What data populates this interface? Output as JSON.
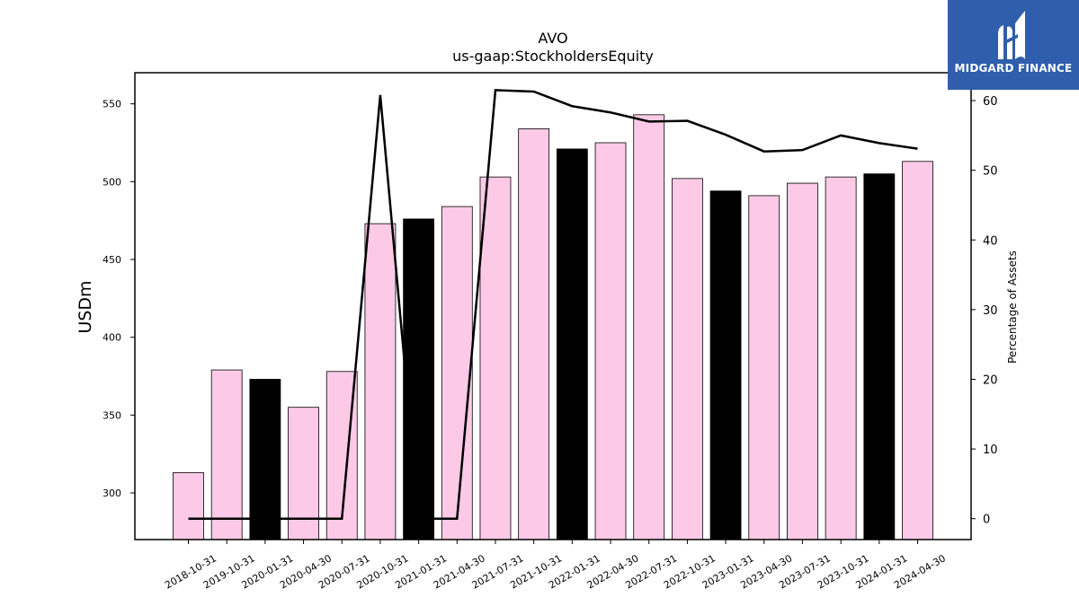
{
  "chart_data": {
    "type": "bar",
    "title": "AVO",
    "subtitle": "us-gaap:StockholdersEquity",
    "ylabel": "USDm",
    "ylabel_right": "Percentage of Assets",
    "ylim": [
      270,
      570
    ],
    "ylim_right": [
      -3,
      64
    ],
    "yticks": [
      300,
      350,
      400,
      450,
      500,
      550
    ],
    "yticks_right": [
      0,
      10,
      20,
      30,
      40,
      50,
      60
    ],
    "categories": [
      "2018-10-31",
      "2019-10-31",
      "2020-01-31",
      "2020-04-30",
      "2020-07-31",
      "2020-10-31",
      "2021-01-31",
      "2021-04-30",
      "2021-07-31",
      "2021-10-31",
      "2022-01-31",
      "2022-04-30",
      "2022-07-31",
      "2022-10-31",
      "2023-01-31",
      "2023-04-30",
      "2023-07-31",
      "2023-10-31",
      "2024-01-31",
      "2024-04-30"
    ],
    "series": [
      {
        "values": [
          313,
          379,
          373,
          355,
          378,
          473,
          476,
          484,
          503,
          534,
          521,
          525,
          543,
          502,
          494,
          491,
          499,
          503,
          505,
          513
        ],
        "bar_colors": [
          "#fccae6",
          "#fccae6",
          "#000000",
          "#fccae6",
          "#fccae6",
          "#fccae6",
          "#000000",
          "#fccae6",
          "#fccae6",
          "#fccae6",
          "#000000",
          "#fccae6",
          "#fccae6",
          "#fccae6",
          "#000000",
          "#fccae6",
          "#fccae6",
          "#fccae6",
          "#000000",
          "#fccae6"
        ]
      },
      {
        "axis": "right",
        "type": "line",
        "color": "#000000",
        "values": [
          0,
          0,
          0,
          0,
          0,
          60.8,
          0,
          0,
          61.5,
          61.3,
          59.2,
          58.3,
          57.0,
          57.1,
          55.1,
          52.7,
          52.9,
          55.0,
          53.9,
          53.1
        ]
      }
    ],
    "grid": false
  },
  "logo": {
    "text": "MIDGARD FINANCE",
    "color": "#2f5eac"
  }
}
